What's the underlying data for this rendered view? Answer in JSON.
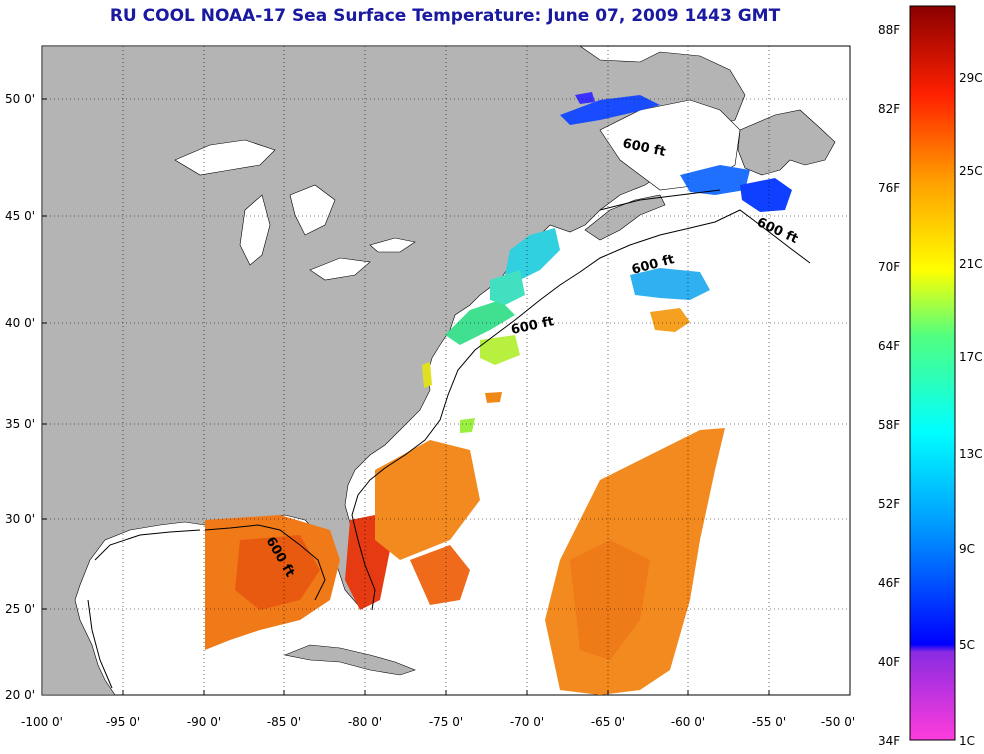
{
  "title": "RU COOL  NOAA-17  Sea Surface Temperature:  June 07, 2009 1443 GMT",
  "axes": {
    "lat_ticks": [
      "50 0'",
      "45 0'",
      "40 0'",
      "35 0'",
      "30 0'",
      "25 0'",
      "20 0'"
    ],
    "lon_ticks": [
      "-100 0'",
      "-95 0'",
      "-90 0'",
      "-85 0'",
      "-80 0'",
      "-75 0'",
      "-70 0'",
      "-65 0'",
      "-60 0'",
      "-55 0'",
      "-50 0'"
    ]
  },
  "contour_labels": [
    "600 ft",
    "600 ft",
    "600 ft",
    "600 ft",
    "600 ft"
  ],
  "colorbar": {
    "fahrenheit": [
      "88F",
      "82F",
      "76F",
      "70F",
      "64F",
      "58F",
      "52F",
      "46F",
      "40F",
      "34F"
    ],
    "celsius": [
      "29C",
      "25C",
      "21C",
      "17C",
      "13C",
      "9C",
      "5C",
      "1C"
    ]
  },
  "colors": {
    "land": "#b4b4b4",
    "ocean_no_data": "#ffffff",
    "title": "#1a1aa0"
  }
}
